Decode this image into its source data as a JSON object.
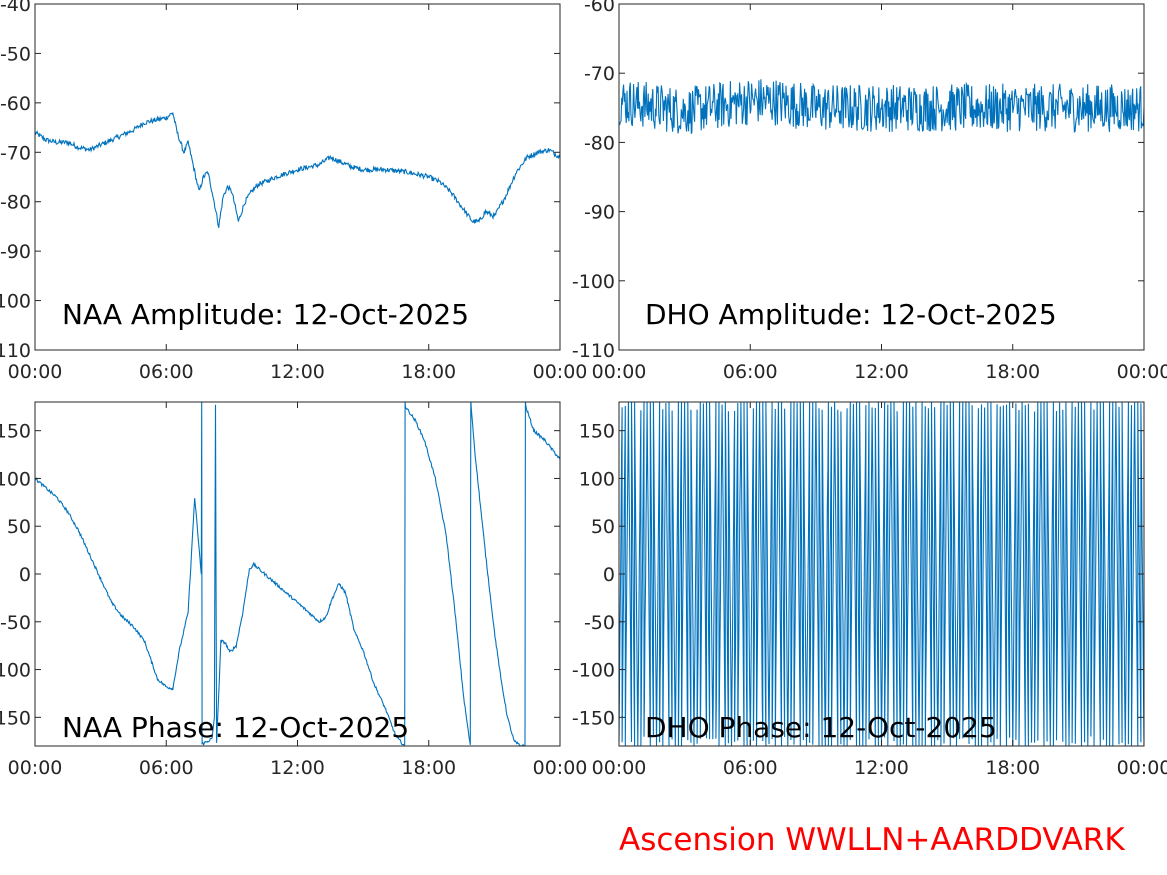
{
  "footer": {
    "text": "Ascension WWLLN+AARDDVARK",
    "color": "#ff0000"
  },
  "series_color": "#0072bd",
  "chart_data": [
    {
      "type": "line",
      "title": "NAA Amplitude: 12-Oct-2025",
      "xlabel": "",
      "ylabel": "",
      "x_unit": "hours UT",
      "xlim": [
        0,
        24
      ],
      "ylim": [
        -110,
        -40
      ],
      "xticks": [
        0,
        6,
        12,
        18,
        24
      ],
      "xtick_labels": [
        "00:00",
        "06:00",
        "12:00",
        "18:00",
        "00:00"
      ],
      "yticks": [
        -110,
        -100,
        -90,
        -80,
        -70,
        -60,
        -50,
        -40
      ],
      "ytick_labels": [
        "-110",
        "-100",
        "-90",
        "-80",
        "-70",
        "-60",
        "-50",
        "-40"
      ],
      "grid": false,
      "series": [
        {
          "noise": 0.5,
          "x": [
            0,
            0.5,
            1,
            1.5,
            2,
            2.5,
            3,
            3.5,
            4,
            4.5,
            5,
            5.5,
            6,
            6.3,
            6.5,
            6.8,
            7,
            7.2,
            7.5,
            7.7,
            7.9,
            8.1,
            8.4,
            8.6,
            8.8,
            9,
            9.3,
            9.6,
            9.9,
            10.2,
            10.5,
            11,
            12,
            13,
            13.5,
            14,
            14.5,
            15,
            16,
            17,
            18,
            18.5,
            19,
            19.5,
            20,
            20.3,
            20.6,
            21,
            21.5,
            22,
            22.5,
            23,
            23.5,
            24
          ],
          "y": [
            -66,
            -67.5,
            -68,
            -68,
            -69,
            -69.5,
            -68.5,
            -67.5,
            -66.5,
            -65.5,
            -64,
            -63.5,
            -63,
            -62,
            -66,
            -70,
            -68,
            -72,
            -78,
            -75,
            -74,
            -78,
            -85,
            -79,
            -77,
            -78,
            -84,
            -80,
            -78,
            -76.5,
            -76,
            -75,
            -73.5,
            -72.5,
            -71,
            -72,
            -73,
            -73.5,
            -73.5,
            -74,
            -75,
            -76,
            -78,
            -81,
            -84,
            -84,
            -82,
            -83,
            -79,
            -74,
            -71,
            -70,
            -69.5,
            -71
          ]
        }
      ]
    },
    {
      "type": "line",
      "title": "DHO Amplitude: 12-Oct-2025",
      "xlabel": "",
      "ylabel": "",
      "x_unit": "hours UT",
      "xlim": [
        0,
        24
      ],
      "ylim": [
        -110,
        -60
      ],
      "xticks": [
        0,
        6,
        12,
        18,
        24
      ],
      "xtick_labels": [
        "00:00",
        "06:00",
        "12:00",
        "18:00",
        "00:00"
      ],
      "yticks": [
        -110,
        -100,
        -90,
        -80,
        -70,
        -60
      ],
      "ytick_labels": [
        "-110",
        "-100",
        "-90",
        "-80",
        "-70",
        "-60"
      ],
      "grid": false,
      "series": [
        {
          "noise": 3.5,
          "x": [
            0,
            1,
            2,
            3,
            4,
            5,
            6,
            7,
            8,
            9,
            10,
            11,
            12,
            13,
            14,
            15,
            16,
            17,
            18,
            19,
            20,
            21,
            22,
            23,
            24
          ],
          "y": [
            -74,
            -74.5,
            -75,
            -75.5,
            -75,
            -74.5,
            -74,
            -74,
            -74.5,
            -75,
            -75,
            -75,
            -75,
            -75,
            -75,
            -75,
            -75,
            -75,
            -75,
            -75,
            -75,
            -75,
            -75,
            -75,
            -75
          ]
        }
      ]
    },
    {
      "type": "line",
      "title": "NAA Phase: 12-Oct-2025",
      "xlabel": "",
      "ylabel": "",
      "x_unit": "hours UT",
      "xlim": [
        0,
        24
      ],
      "ylim": [
        -180,
        180
      ],
      "xticks": [
        0,
        6,
        12,
        18,
        24
      ],
      "xtick_labels": [
        "00:00",
        "06:00",
        "12:00",
        "18:00",
        "00:00"
      ],
      "yticks": [
        -150,
        -100,
        -50,
        0,
        50,
        100,
        150
      ],
      "ytick_labels": [
        "-150",
        "-100",
        "-50",
        "0",
        "50",
        "100",
        "150"
      ],
      "grid": false,
      "series": [
        {
          "noise": 1.5,
          "x": [
            0,
            0.5,
            1,
            1.5,
            2,
            2.5,
            3,
            3.5,
            4,
            4.5,
            5,
            5.3,
            5.6,
            6,
            6.3,
            6.6,
            7,
            7.3,
            7.6,
            7.62,
            7.64,
            7.9,
            8.1,
            8.2,
            8.25,
            8.3,
            8.5,
            8.7,
            8.9,
            9.2,
            9.5,
            9.8,
            10,
            10.5,
            11,
            11.5,
            12,
            12.5,
            13,
            13.3,
            13.6,
            13.9,
            14.2,
            14.6,
            15,
            15.5,
            16,
            16.5,
            16.9,
            16.92,
            16.94,
            17.4,
            17.8,
            18.3,
            18.8,
            19.2,
            19.6,
            19.9,
            19.92,
            19.94,
            20.1,
            20.3,
            20.6,
            21,
            21.3,
            21.6,
            21.9,
            22.2,
            22.4,
            22.42,
            22.44,
            22.8,
            23.3,
            24
          ],
          "y": [
            100,
            90,
            80,
            65,
            45,
            20,
            -5,
            -30,
            -45,
            -55,
            -70,
            -90,
            -110,
            -118,
            -120,
            -80,
            -40,
            80,
            0,
            180,
            -178,
            -175,
            -172,
            -150,
            178,
            -178,
            -70,
            -72,
            -82,
            -75,
            -40,
            5,
            10,
            0,
            -10,
            -20,
            -30,
            -40,
            -50,
            -45,
            -25,
            -10,
            -20,
            -60,
            -80,
            -115,
            -140,
            -170,
            -180,
            180,
            175,
            160,
            140,
            100,
            40,
            -40,
            -130,
            -180,
            180,
            175,
            130,
            85,
            20,
            -60,
            -110,
            -150,
            -175,
            -180,
            -180,
            180,
            175,
            150,
            140,
            120
          ]
        }
      ]
    },
    {
      "type": "line",
      "title": "DHO Phase: 12-Oct-2025",
      "xlabel": "",
      "ylabel": "",
      "x_unit": "hours UT",
      "xlim": [
        0,
        24
      ],
      "ylim": [
        -180,
        180
      ],
      "xticks": [
        0,
        6,
        12,
        18,
        24
      ],
      "xtick_labels": [
        "00:00",
        "06:00",
        "12:00",
        "18:00",
        "00:00"
      ],
      "yticks": [
        -150,
        -100,
        -50,
        0,
        50,
        100,
        150
      ],
      "ytick_labels": [
        "-150",
        "-100",
        "-50",
        "0",
        "50",
        "100",
        "150"
      ],
      "grid": false,
      "series": [
        {
          "wraps_per_hour": 7,
          "range": [
            -180,
            180
          ]
        }
      ]
    }
  ]
}
